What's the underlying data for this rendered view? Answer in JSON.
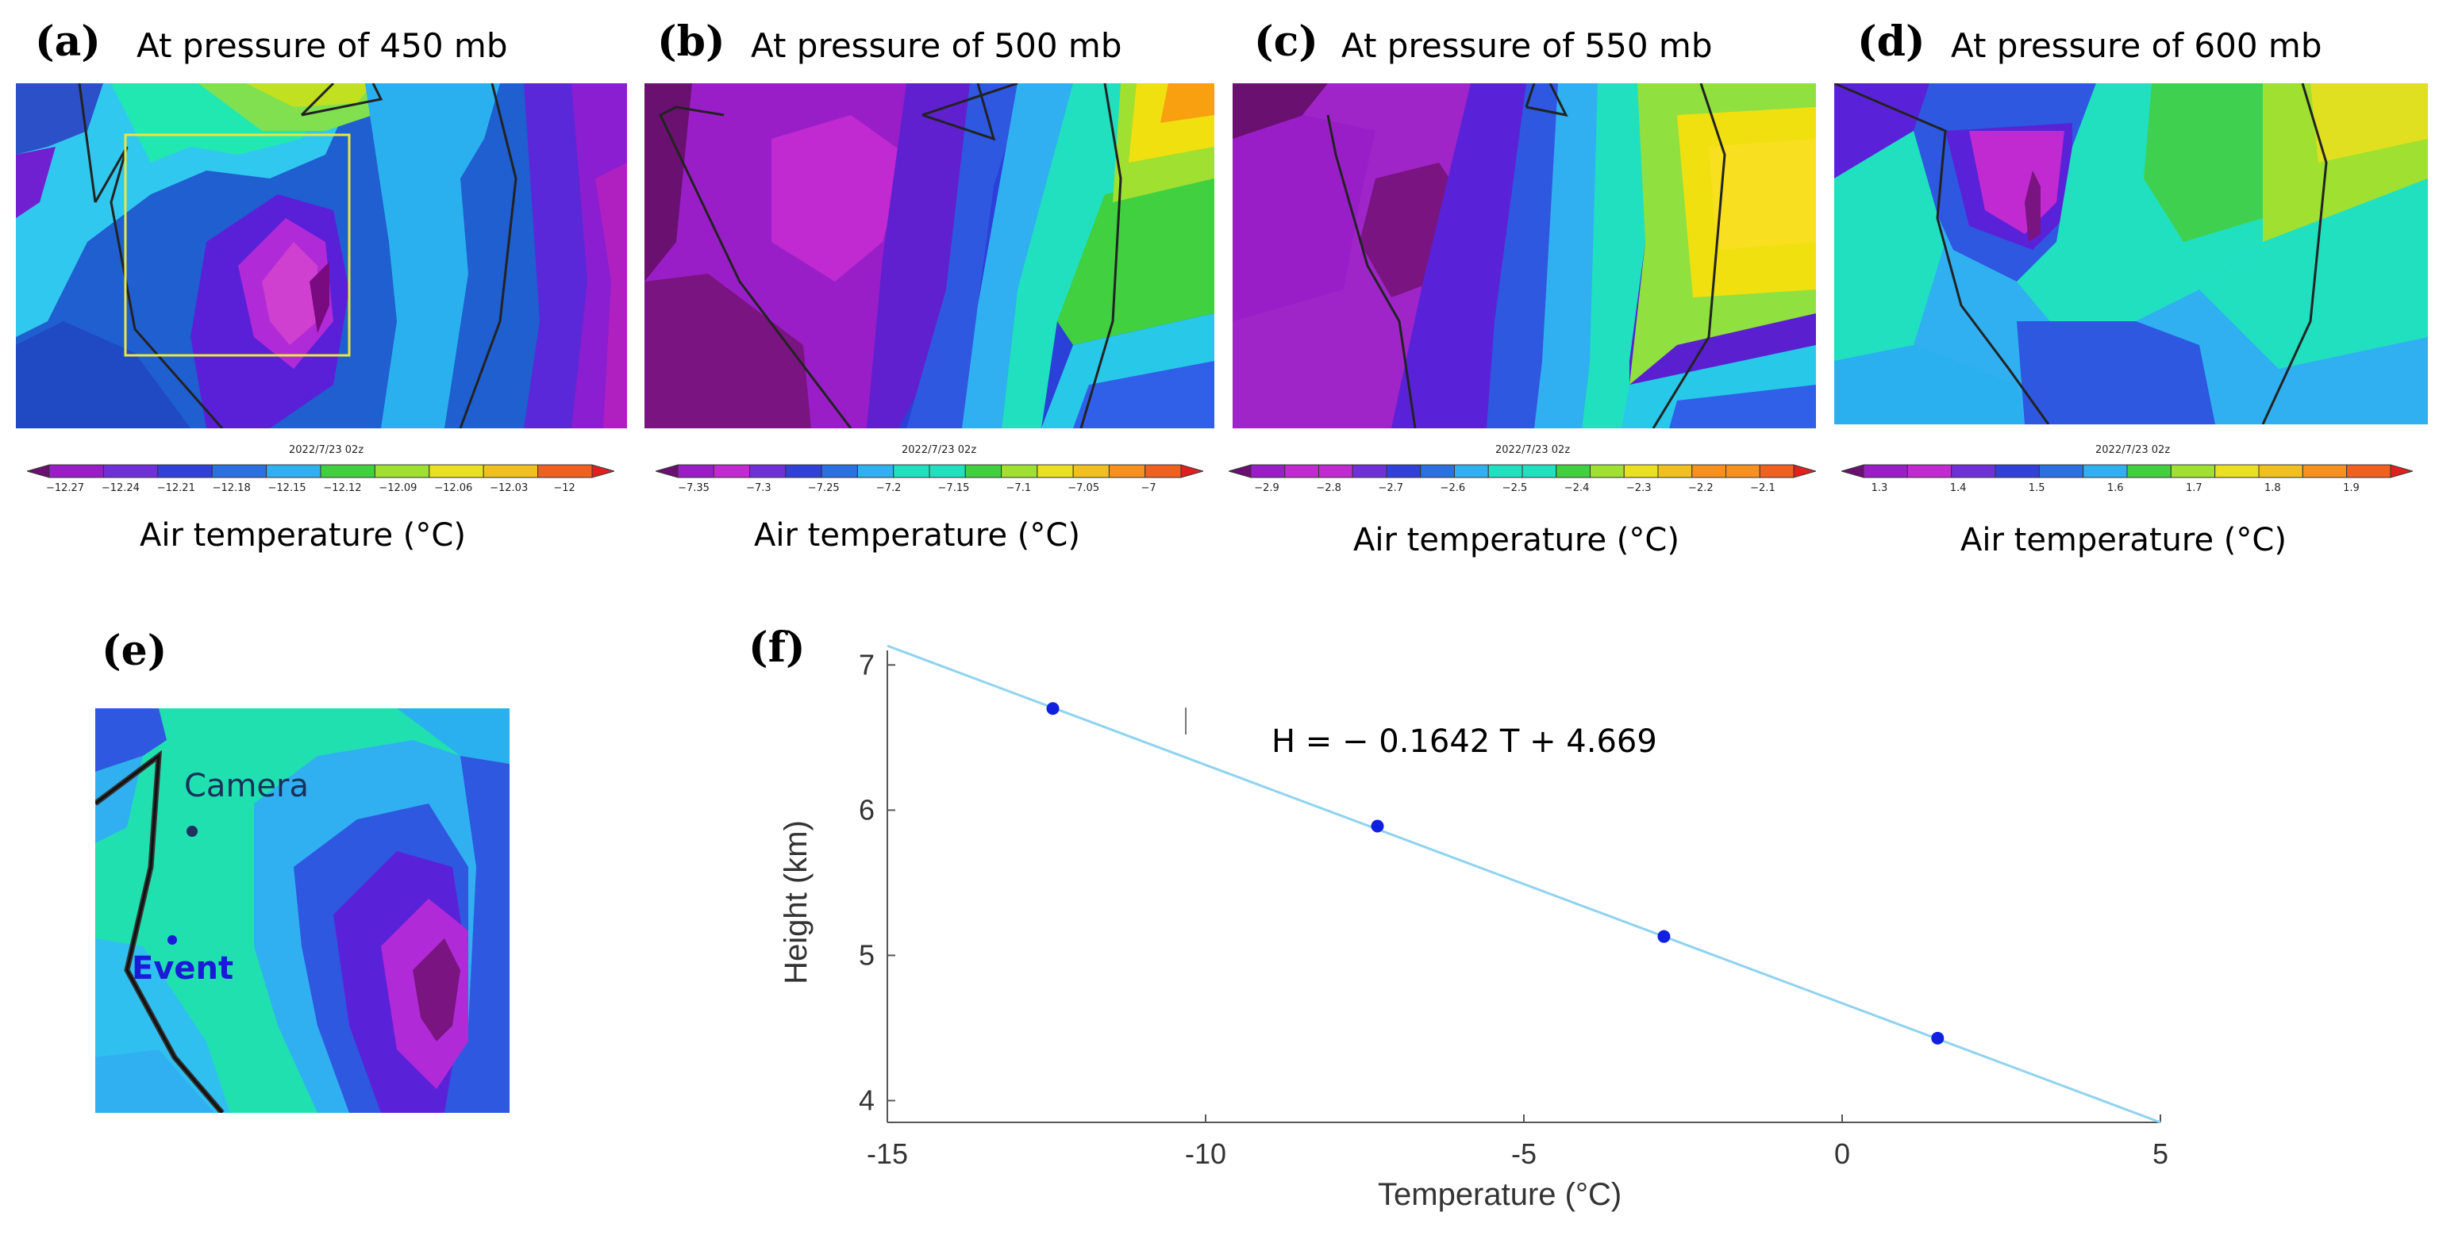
{
  "panels": [
    {
      "label": "(a)",
      "title": "At pressure of 450 mb",
      "date": "2022/7/23 02z",
      "ticks": [
        "−12.27",
        "−12.24",
        "−12.21",
        "−12.18",
        "−12.15",
        "−12.12",
        "−12.09",
        "−12.06",
        "−12.03",
        "−12"
      ],
      "axis_title": "Air temperature (°C)"
    },
    {
      "label": "(b)",
      "title": "At pressure of 500 mb",
      "date": "2022/7/23 02z",
      "ticks": [
        "−7.35",
        "−7.3",
        "−7.25",
        "−7.2",
        "−7.15",
        "−7.1",
        "−7.05",
        "−7"
      ],
      "axis_title": "Air temperature (°C)"
    },
    {
      "label": "(c)",
      "title": "At pressure of 550 mb",
      "date": "2022/7/23 02z",
      "ticks": [
        "−2.9",
        "−2.8",
        "−2.7",
        "−2.6",
        "−2.5",
        "−2.4",
        "−2.3",
        "−2.2",
        "−2.1"
      ],
      "axis_title": "Air temperature (°C)"
    },
    {
      "label": "(d)",
      "title": "At pressure of 600 mb",
      "date": "2022/7/23 02z",
      "ticks": [
        "1.3",
        "1.4",
        "1.5",
        "1.6",
        "1.7",
        "1.8",
        "1.9"
      ],
      "axis_title": "Air temperature (°C)"
    }
  ],
  "panel_e": {
    "label": "(e)",
    "camera_label": "Camera",
    "event_label": "Event"
  },
  "panel_f": {
    "label": "(f)"
  },
  "colors": {
    "accent_point": "#1020e0",
    "fit_line": "#8fd3f0",
    "event_text": "#1a1ad8",
    "box": "#e8e840"
  },
  "chart_data": {
    "type": "scatter",
    "title": "",
    "equation": "H = − 0.1642 T + 4.669",
    "xlabel": "Temperature (°C)",
    "ylabel": "Height (km)",
    "xlim": [
      -15,
      5
    ],
    "ylim": [
      3.85,
      7.1
    ],
    "xticks": [
      -15,
      -10,
      -5,
      0,
      5
    ],
    "yticks": [
      4,
      5,
      6,
      7
    ],
    "xtick_labels": [
      "-15",
      "-10",
      "-5",
      "0",
      "5"
    ],
    "ytick_labels": [
      "4",
      "5",
      "6",
      "7"
    ],
    "points": [
      {
        "x": -12.4,
        "y": 6.7
      },
      {
        "x": -7.3,
        "y": 5.89
      },
      {
        "x": -2.8,
        "y": 5.13
      },
      {
        "x": 1.5,
        "y": 4.43
      }
    ],
    "fit": {
      "slope": -0.1642,
      "intercept": 4.669
    }
  }
}
